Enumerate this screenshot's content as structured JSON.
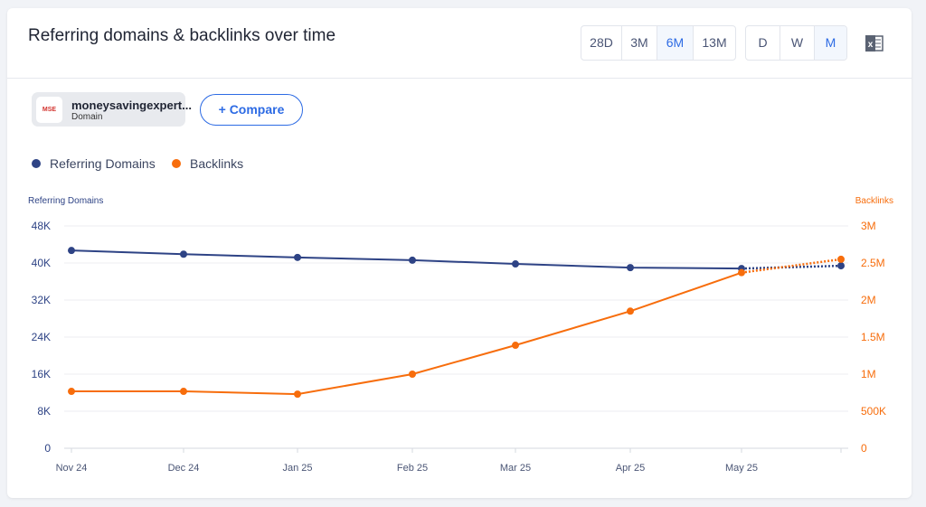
{
  "header": {
    "title": "Referring domains & backlinks over time",
    "ranges": [
      {
        "label": "28D",
        "active": false
      },
      {
        "label": "3M",
        "active": false
      },
      {
        "label": "6M",
        "active": true
      },
      {
        "label": "13M",
        "active": false
      }
    ],
    "granularity": [
      {
        "label": "D",
        "active": false
      },
      {
        "label": "W",
        "active": false
      },
      {
        "label": "M",
        "active": true
      }
    ],
    "export_icon": "excel-icon"
  },
  "domain_chip": {
    "name": "moneysavingexpert...",
    "type": "Domain",
    "logo": "MSE"
  },
  "compare_label": "+ Compare",
  "colors": {
    "domains": "#2e4385",
    "backlinks": "#f76d0c",
    "accent": "#2d6be4"
  },
  "chart_data": {
    "type": "line",
    "categories": [
      "Nov 24",
      "Dec 24",
      "Jan 25",
      "Feb 25",
      "Mar 25",
      "Apr 25",
      "May 25",
      ""
    ],
    "series": [
      {
        "name": "Referring Domains",
        "axis": "left",
        "values": [
          42700,
          41900,
          41200,
          40600,
          39800,
          39000,
          38800,
          39400
        ]
      },
      {
        "name": "Backlinks",
        "axis": "right",
        "values": [
          768000,
          768000,
          730000,
          1000000,
          1390000,
          1850000,
          2370000,
          2550000
        ]
      }
    ],
    "projected_last_point": true,
    "ylabel": "Referring Domains",
    "ylim": [
      0,
      48000
    ],
    "yticks": [
      "0",
      "8K",
      "16K",
      "24K",
      "32K",
      "40K",
      "48K"
    ],
    "y2label": "Backlinks",
    "y2lim": [
      0,
      3000000
    ],
    "y2ticks": [
      "0",
      "500K",
      "1M",
      "1.5M",
      "2M",
      "2.5M",
      "3M"
    ],
    "grid": true,
    "legend": "top-left"
  }
}
